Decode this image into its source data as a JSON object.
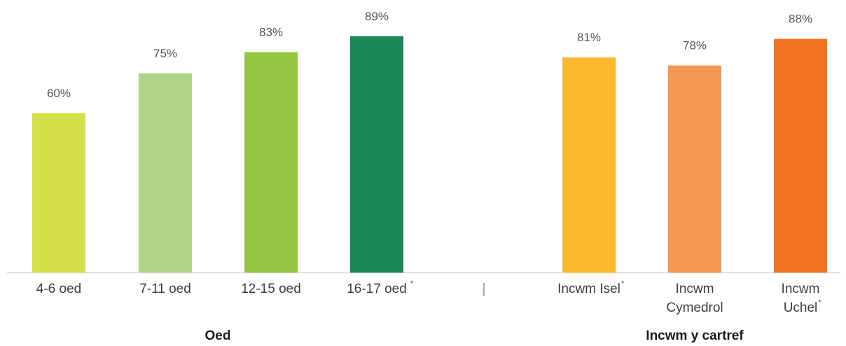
{
  "chart_data": {
    "type": "bar",
    "ylim": [
      0,
      100
    ],
    "value_suffix": "%",
    "categories": [
      {
        "lines": [
          "4-6 oed"
        ],
        "mark": "",
        "value": 60,
        "color": "#d4e04a",
        "group": "Oed"
      },
      {
        "lines": [
          "7-11 oed"
        ],
        "mark": "",
        "value": 75,
        "color": "#b0d48a",
        "group": "Oed"
      },
      {
        "lines": [
          "12-15 oed"
        ],
        "mark": "",
        "value": 83,
        "color": "#94c642",
        "group": "Oed"
      },
      {
        "lines": [
          "16-17 oed"
        ],
        "mark": "*",
        "value": 89,
        "color": "#1b8659",
        "group": "Oed"
      },
      {
        "lines": [
          "Incwm Isel"
        ],
        "mark": "*",
        "value": 81,
        "color": "#fbb82e",
        "group": "Incwm y cartref"
      },
      {
        "lines": [
          "Incwm",
          "Cymedrol"
        ],
        "mark": "",
        "value": 78,
        "color": "#f59753",
        "group": "Incwm y cartref"
      },
      {
        "lines": [
          "Incwm",
          "Uchel"
        ],
        "mark": "*",
        "value": 88,
        "color": "#f27323",
        "group": "Incwm y cartref"
      }
    ],
    "groups": [
      "Oed",
      "Incwm y cartref"
    ],
    "separator": "|"
  }
}
